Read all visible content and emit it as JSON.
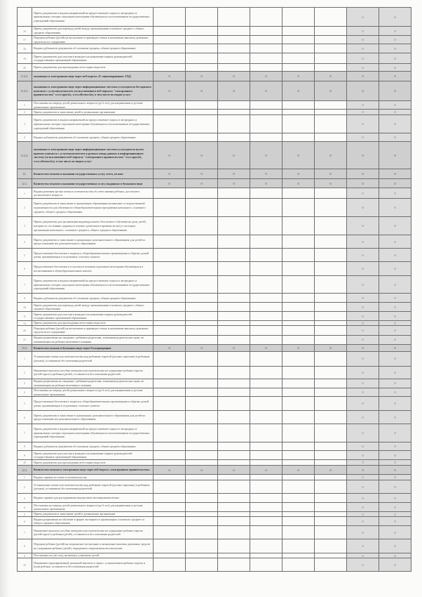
{
  "table": {
    "rows": [
      {
        "num": "",
        "text": "Прием документов и выдача направлений на предоставление отдыха в загородных и пришкольных лагерях отдельным категориям обучающихся и воспитанников государственных учреждений образования",
        "total": false,
        "values": [
          "",
          "",
          "",
          "",
          "",
          "",
          "0",
          "0"
        ]
      },
      {
        "num": "16",
        "text": "Прием документов для перевода детей между организациями основного среднего, общего среднего образования",
        "total": false,
        "values": [
          "",
          "",
          "",
          "",
          "",
          "",
          "0",
          "0"
        ]
      },
      {
        "num": "17",
        "text": "Передача ребенка (детей) на воспитание в приемную семью и назначение выплаты денежных средств на их содержание",
        "total": false,
        "values": [
          "",
          "",
          "",
          "",
          "",
          "",
          "0",
          "0"
        ]
      },
      {
        "num": "18",
        "text": "Выдача дубликатов документов об основном среднем, общем среднем образовании",
        "total": false,
        "values": [
          "",
          "",
          "",
          "",
          "",
          "",
          "0",
          "0"
        ]
      },
      {
        "num": "19",
        "text": "Прием документов для участия в конкурсе на назначение первых руководителей государственных организаций образования",
        "total": false,
        "values": [
          "",
          "",
          "",
          "",
          "",
          "",
          "0",
          "0"
        ]
      },
      {
        "num": "20",
        "text": "Прием документов для прохождения аттестации педагогов",
        "total": false,
        "values": [
          "",
          "",
          "",
          "",
          "",
          "",
          "0",
          "0"
        ]
      },
      {
        "num": "11.4.2.",
        "text": "оказанных в электронном виде через веб-портал «Е-лицензирование» ГБД",
        "total": true,
        "values": [
          "0",
          "0",
          "0",
          "0",
          "0",
          "0",
          "0",
          "0"
        ]
      },
      {
        "num": "11.4.3.",
        "text": "оказанных в электронном виде через информационные системы услугодателя без прямого контакта с услугополучателем (за исключением веб-портала \"электронного правительства\" www.egov.kz, www.elicense.kz), в том числе по видам услуг:",
        "total": true,
        "values": [
          "0",
          "0",
          "0",
          "0",
          "0",
          "0",
          "0",
          "0"
        ]
      },
      {
        "num": "1",
        "text": "Постановка на очередь детей дошкольного возраста (до 6 лет) для направления в детские дошкольные организации",
        "total": false,
        "values": [
          "",
          "",
          "",
          "",
          "",
          "",
          "0",
          "0"
        ]
      },
      {
        "num": "2",
        "text": "Прием документов и зачисление детей в дошкольные организации",
        "total": false,
        "values": [
          "",
          "",
          "",
          "",
          "",
          "",
          "0",
          "0"
        ]
      },
      {
        "num": "3",
        "text": "Прием документов и выдача направлений на предоставление отдыха в загородных и пришкольных лагерях отдельным категориям обучающихся и воспитанников государственных учреждений образования",
        "total": false,
        "values": [
          "",
          "",
          "",
          "",
          "",
          "",
          "0",
          "0"
        ]
      },
      {
        "num": "4",
        "text": "Выдача дубликатов документов об основном среднем, общем среднем образовании",
        "total": false,
        "values": [
          "",
          "",
          "",
          "",
          "",
          "",
          "0",
          "0"
        ]
      },
      {
        "num": "11.4.4.",
        "text": "оказанных в электронном виде через информационные системы услугодателя путем прямого контакта с услугополучателем и ручного ввода данных в информационную систему (за исключением веб-портала \"электронного правительства\" www.egov.kz, www.elicense.kz), в том числе по видам услуг:",
        "total": true,
        "values": [
          "0",
          "0",
          "0",
          "0",
          "0",
          "0",
          "0",
          "0"
        ]
      },
      {
        "num": "12.",
        "text": "Количество отказов в оказании государственных услуг, всего, из них:",
        "total": true,
        "values": [
          "0",
          "0",
          "0",
          "0",
          "0",
          "0",
          "0",
          "0"
        ]
      },
      {
        "num": "12.1.",
        "text": "Количество отказов в оказании государственных услуг, выданных в бумажном виде",
        "total": true,
        "values": [
          "0",
          "0",
          "0",
          "0",
          "0",
          "0",
          "0",
          "0"
        ]
      },
      {
        "num": "1",
        "text": "Выдача решения органа опеки и попечительства об учете мнения ребенка, достигшего десятилетнего возраста",
        "total": false,
        "values": [
          "",
          "",
          "",
          "",
          "",
          "",
          "0",
          "0"
        ]
      },
      {
        "num": "2",
        "text": "Прием документов и зачисление в организации образования независимо от ведомственной подчиненности для обучения по общеобразовательным программам начального, основного среднего, общего среднего образования",
        "total": false,
        "values": [
          "",
          "",
          "",
          "",
          "",
          "",
          "0",
          "0"
        ]
      },
      {
        "num": "3",
        "text": "Прием документов для организации индивидуального бесплатного обучения на дому детей, которые по состоянию здоровья в течение длительного времени не могут посещать организации начального, основного среднего, общего среднего образования",
        "total": false,
        "values": [
          "",
          "",
          "",
          "",
          "",
          "",
          "0",
          "0"
        ]
      },
      {
        "num": "4",
        "text": "Прием документов и зачисление в организации дополнительного образования для детей по предоставлению им дополнительного образования",
        "total": false,
        "values": [
          "",
          "",
          "",
          "",
          "",
          "",
          "0",
          "0"
        ]
      },
      {
        "num": "5",
        "text": "Предоставление бесплатного подвоза к общеобразовательным организациям и обратно домой детям, проживающим в отдаленных сельских пунктах",
        "total": false,
        "values": [
          "",
          "",
          "",
          "",
          "",
          "",
          "0",
          "0"
        ]
      },
      {
        "num": "6",
        "text": "Предоставление бесплатного и льготного питания отдельным категориям обучающихся и воспитанников в общеобразовательных школах",
        "total": false,
        "values": [
          "",
          "",
          "",
          "",
          "",
          "",
          "0",
          "0"
        ]
      },
      {
        "num": "7",
        "text": "Прием документов и выдача направлений на предоставление отдыха в загородных и пришкольных лагерях отдельным категориям обучающихся и воспитанников государственных учреждений образования",
        "total": false,
        "values": [
          "",
          "",
          "",
          "",
          "",
          "",
          "0",
          "0"
        ]
      },
      {
        "num": "8",
        "text": "Выдача дубликатов документов об основном среднем, общем среднем образовании",
        "total": false,
        "values": [
          "",
          "",
          "",
          "",
          "",
          "",
          "0",
          "0"
        ]
      },
      {
        "num": "10",
        "text": "Прием документов для перевода детей между организациями основного среднего, общего среднего образования",
        "total": false,
        "values": [
          "",
          "",
          "",
          "",
          "",
          "",
          "0",
          "0"
        ]
      },
      {
        "num": "11",
        "text": "Прием документов для участия в конкурсе на назначение первых руководителей государственных организаций образования",
        "total": false,
        "values": [
          "",
          "",
          "",
          "",
          "",
          "",
          "0",
          "0"
        ]
      },
      {
        "num": "12",
        "text": "Прием документов для прохождения аттестации педагогов",
        "total": false,
        "values": [
          "",
          "",
          "",
          "",
          "",
          "",
          "0",
          "0"
        ]
      },
      {
        "num": "20",
        "text": "Передача ребенка (детей) на воспитание в приемную семью и назначение выплаты денежных средств на их содержание",
        "total": false,
        "values": [
          "",
          "",
          "",
          "",
          "",
          "",
          "0",
          "0"
        ]
      },
      {
        "num": "21",
        "text": "Выдача разрешения на свидания с ребенком родителям, лишенным родительских прав, не оказывающим на ребенка негативного влияния",
        "total": false,
        "values": [
          "",
          "",
          "",
          "",
          "",
          "",
          "0",
          "0"
        ]
      },
      {
        "num": "12.2.",
        "text": "Количество отказов в бумажном виде через Госкорпорацию",
        "total": true,
        "values": [
          "0",
          "0",
          "0",
          "0",
          "0",
          "0",
          "0",
          "0"
        ]
      },
      {
        "num": "1",
        "text": "Установление опеки или попечительства над ребенком-сиротой (детьми-сиротами) и ребенком (детьми), оставшимся без попечения родителей",
        "total": false,
        "values": [
          "",
          "",
          "",
          "",
          "",
          "",
          "0",
          "0"
        ]
      },
      {
        "num": "2",
        "text": "Назначение выплаты пособия опекунам или попечителям на содержание ребенка-сироты (детей-сирот) и ребенка (детей), оставшегося без попечения родителей",
        "total": false,
        "values": [
          "",
          "",
          "",
          "",
          "",
          "",
          "0",
          "0"
        ]
      },
      {
        "num": "3",
        "text": "Выдача разрешения на свидания с ребенком родителям, лишенным родительских прав, не оказывающим на ребенка негативного влияния",
        "total": false,
        "values": [
          "",
          "",
          "",
          "",
          "",
          "",
          "0",
          "0"
        ]
      },
      {
        "num": "4",
        "text": "Постановка на очередь детей дошкольного возраста (до 6 лет) для направления в детские дошкольные организации",
        "total": false,
        "values": [
          "",
          "",
          "",
          "",
          "",
          "",
          "0",
          "0"
        ]
      },
      {
        "num": "5",
        "text": "Предоставление бесплатного подвоза к общеобразовательным организациям и обратно домой детям, проживающим в отдаленных сельских пунктах",
        "total": false,
        "values": [
          "",
          "",
          "",
          "",
          "",
          "",
          "0",
          "0"
        ]
      },
      {
        "num": "6",
        "text": "Прием документов и зачисление в организации дополнительного образования для детей по предоставлению им дополнительного образования",
        "total": false,
        "values": [
          "",
          "",
          "",
          "",
          "",
          "",
          "0",
          "0"
        ]
      },
      {
        "num": "7",
        "text": "Прием документов и выдача направлений на предоставление отдыха в загородных и пришкольных лагерях отдельным категориям обучающихся и воспитанников государственных учреждений образования",
        "total": false,
        "values": [
          "",
          "",
          "",
          "",
          "",
          "",
          "0",
          "0"
        ]
      },
      {
        "num": "8",
        "text": "Выдача дубликатов документов об основном среднем, общем среднем образовании",
        "total": false,
        "values": [
          "",
          "",
          "",
          "",
          "",
          "",
          "0",
          "0"
        ]
      },
      {
        "num": "9",
        "text": "Прием документов для участия в конкурсе на назначение первых руководителей государственных организаций образования",
        "total": false,
        "values": [
          "",
          "",
          "",
          "",
          "",
          "",
          "0",
          "0"
        ]
      },
      {
        "num": "10",
        "text": "Прием документов для прохождения аттестации педагогов",
        "total": false,
        "values": [
          "",
          "",
          "",
          "",
          "",
          "",
          "0",
          "0"
        ]
      },
      {
        "num": "12.3.",
        "text": "Количество отказов в электронном виде через веб-портал «электронного правительства»",
        "total": true,
        "values": [
          "0",
          "0",
          "0",
          "0",
          "0",
          "0",
          "0",
          "0"
        ]
      },
      {
        "num": "1",
        "text": "Выдача справок по опеке и попечительству",
        "total": false,
        "values": [
          "",
          "",
          "",
          "",
          "",
          "",
          "0",
          "0"
        ]
      },
      {
        "num": "2",
        "text": "Установление опеки или попечительства над ребенком-сиротой (детьми-сиротами) и ребенком (детьми), оставшимся без попечения родителей",
        "total": false,
        "values": [
          "",
          "",
          "",
          "",
          "",
          "",
          "0",
          "0"
        ]
      },
      {
        "num": "3",
        "text": "Выдача справок для распоряжения имуществом несовершеннолетних",
        "total": false,
        "values": [
          "",
          "",
          "",
          "",
          "",
          "",
          "0",
          "0"
        ]
      },
      {
        "num": "4",
        "text": "Постановка на очередь детей дошкольного возраста (до 6 лет) для направления в детские дошкольные организации",
        "total": false,
        "values": [
          "",
          "",
          "",
          "",
          "",
          "",
          "0",
          "0"
        ]
      },
      {
        "num": "5",
        "text": "Прием документов и зачисление детей в дошкольные организации",
        "total": false,
        "values": [
          "",
          "",
          "",
          "",
          "",
          "",
          "0",
          "0"
        ]
      },
      {
        "num": "6",
        "text": "Выдача разрешения на обучение в форме экстерната в организациях основного среднего и общего среднего образования",
        "total": false,
        "values": [
          "",
          "",
          "",
          "",
          "",
          "",
          "0",
          "0"
        ]
      },
      {
        "num": "7",
        "text": "Назначение выплаты пособия опекунам или попечителям на содержание ребенка-сироты (детей-сирот) и ребенка (детей), оставшегося без попечения родителей",
        "total": false,
        "values": [
          "",
          "",
          "",
          "",
          "",
          "",
          "0",
          "0"
        ]
      },
      {
        "num": "8",
        "text": "Передача ребенка (детей) на патронатное воспитание и назначение выплаты денежных средств на содержание ребенка (детей), переданного патронатным воспитателям",
        "total": false,
        "values": [
          "",
          "",
          "",
          "",
          "",
          "",
          "0",
          "0"
        ]
      },
      {
        "num": "9",
        "text": "Постановка на учет лиц, желающих усыновить детей",
        "total": false,
        "values": [
          "",
          "",
          "",
          "",
          "",
          "",
          "0",
          "0"
        ]
      },
      {
        "num": "10",
        "text": "Назначение единовременной денежной выплаты в связи с усыновлением ребенка-сироты и (или) ребенка, оставшегося без попечения родителей",
        "total": false,
        "values": [
          "",
          "",
          "",
          "",
          "",
          "",
          "0",
          "0"
        ]
      }
    ]
  }
}
